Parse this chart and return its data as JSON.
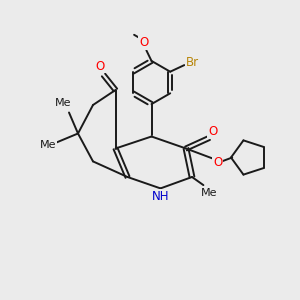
{
  "background_color": "#ebebeb",
  "bond_color": "#1a1a1a",
  "atom_colors": {
    "O": "#ff0000",
    "N": "#0000cc",
    "Br": "#b8860b",
    "C": "#1a1a1a"
  },
  "figsize": [
    3.0,
    3.0
  ],
  "dpi": 100,
  "lw": 1.4,
  "fontsize": 8.5,
  "xlim": [
    0,
    10
  ],
  "ylim": [
    0,
    10
  ]
}
